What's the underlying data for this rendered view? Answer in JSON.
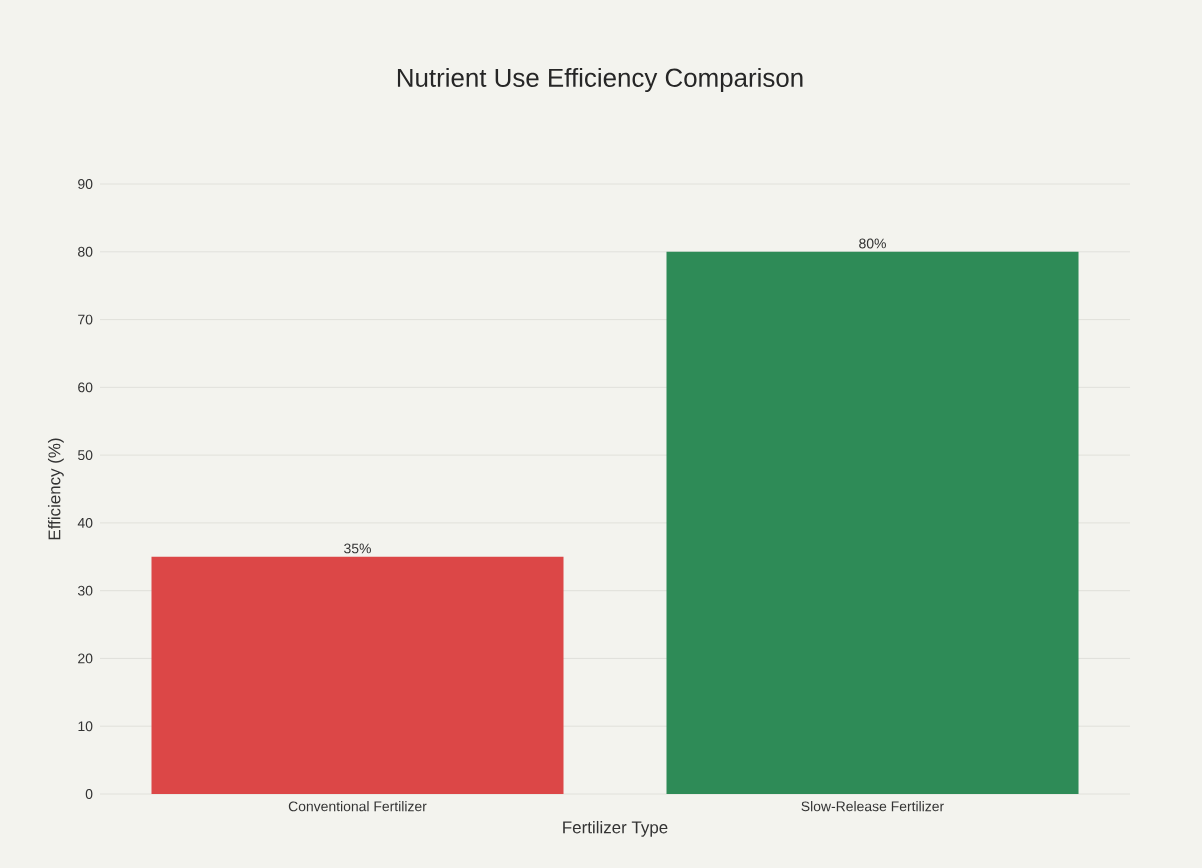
{
  "chart_data": {
    "type": "bar",
    "title": "Nutrient Use Efficiency Comparison",
    "xlabel": "Fertilizer Type",
    "ylabel": "Efficiency (%)",
    "categories": [
      "Conventional Fertilizer",
      "Slow-Release Fertilizer"
    ],
    "values": [
      35,
      80
    ],
    "colors": [
      "#dc4747",
      "#2e8b57"
    ],
    "value_labels": [
      "35%",
      "80%"
    ],
    "ylim": [
      0,
      90
    ],
    "yticks": [
      0,
      10,
      20,
      30,
      40,
      50,
      60,
      70,
      80,
      90
    ],
    "grid": "y"
  }
}
